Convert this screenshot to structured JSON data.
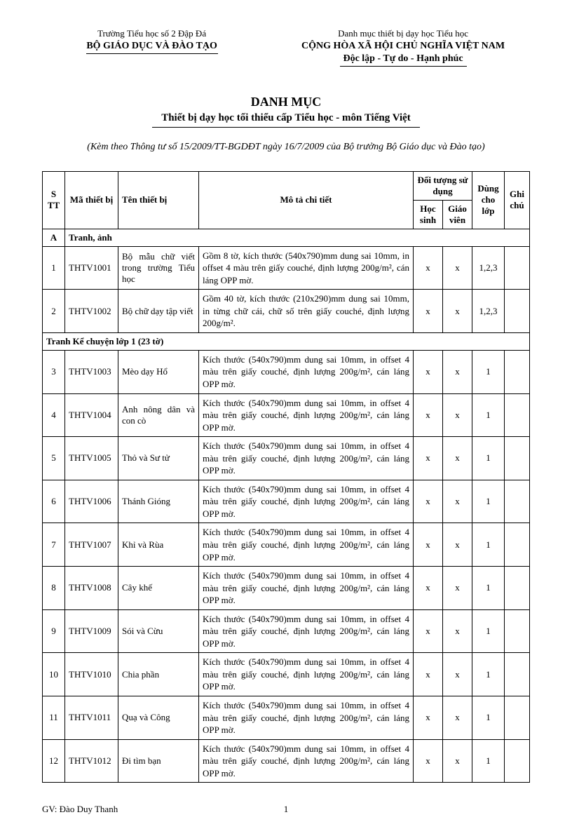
{
  "header": {
    "school": "Trường Tiểu học số 2 Đập Đá",
    "ministry": "BỘ GIÁO DỤC VÀ ĐÀO TẠO",
    "catTitle": "Danh mục thiết bị dạy học Tiểu học",
    "country": "CỘNG HÒA XÃ HỘI CHỦ NGHĨA VIỆT NAM",
    "motto": "Độc lập - Tự do - Hạnh phúc"
  },
  "title": {
    "main": "DANH MỤC",
    "sub": "Thiết bị dạy học tối thiểu cấp Tiểu học - môn Tiếng Việt"
  },
  "reference": "(Kèm theo Thông tư số  15/2009/TT-BGDĐT ngày 16/7/2009 của Bộ trưởng Bộ Giáo dục và Đào tạo)",
  "columns": {
    "stt": "S TT",
    "ma": "Mã thiết bị",
    "ten": "Tên thiết bị",
    "mota": "Mô tả chi tiết",
    "doituong": "Đối tượng sử dụng",
    "hocsinh": "Học sinh",
    "giaovien": "Giáo viên",
    "lop": "Dùng cho lớp",
    "ghi": "Ghi chú"
  },
  "sectionA": {
    "letter": "A",
    "title": "Tranh, ảnh"
  },
  "rowsA": [
    {
      "stt": "1",
      "ma": "THTV1001",
      "ten": "Bộ mẫu chữ viết trong trường Tiểu học",
      "mota": "Gồm 8 tờ, kích thước (540x790)mm dung sai 10mm, in offset 4 màu trên giấy couché, định lượng 200g/m², cán láng OPP mờ.",
      "hs": "x",
      "gv": "x",
      "lop": "1,2,3"
    },
    {
      "stt": "2",
      "ma": "THTV1002",
      "ten": "Bộ chữ dạy tập viết",
      "mota": "Gồm 40 tờ, kích thước (210x290)mm dung sai 10mm, in từng chữ cái, chữ số trên giấy couché, định lượng 200g/m².",
      "hs": "x",
      "gv": "x",
      "lop": "1,2,3"
    }
  ],
  "subsection": "Tranh Kể chuyện lớp 1 (23 tờ)",
  "rowsB": [
    {
      "stt": "3",
      "ma": "THTV1003",
      "ten": "Mèo dạy Hổ",
      "mota": "Kích thước (540x790)mm dung sai 10mm, in offset 4 màu trên giấy couché, định lượng 200g/m², cán láng OPP mờ.",
      "hs": "x",
      "gv": "x",
      "lop": "1"
    },
    {
      "stt": "4",
      "ma": "THTV1004",
      "ten": "Anh nông dân và con cò",
      "mota": "Kích thước (540x790)mm dung sai 10mm, in offset 4 màu trên giấy couché, định lượng 200g/m², cán láng OPP mờ.",
      "hs": "x",
      "gv": "x",
      "lop": "1"
    },
    {
      "stt": "5",
      "ma": "THTV1005",
      "ten": "Thỏ và Sư tử",
      "mota": "Kích thước (540x790)mm dung sai 10mm, in offset 4 màu trên giấy couché, định lượng 200g/m², cán láng OPP mờ.",
      "hs": "x",
      "gv": "x",
      "lop": "1"
    },
    {
      "stt": "6",
      "ma": "THTV1006",
      "ten": "Thánh Gióng",
      "mota": "Kích thước (540x790)mm dung sai 10mm, in offset 4 màu trên giấy couché, định lượng 200g/m², cán láng OPP mờ.",
      "hs": "x",
      "gv": "x",
      "lop": "1"
    },
    {
      "stt": "7",
      "ma": "THTV1007",
      "ten": "Khỉ và Rùa",
      "mota": "Kích thước (540x790)mm dung sai 10mm, in offset 4 màu trên giấy couché, định lượng 200g/m², cán láng OPP mờ.",
      "hs": "x",
      "gv": "x",
      "lop": "1"
    },
    {
      "stt": "8",
      "ma": "THTV1008",
      "ten": "Cây khế",
      "mota": "Kích thước (540x790)mm dung sai 10mm, in offset 4 màu trên giấy couché, định lượng 200g/m², cán láng OPP mờ.",
      "hs": "x",
      "gv": "x",
      "lop": "1"
    },
    {
      "stt": "9",
      "ma": "THTV1009",
      "ten": "Sói và Cừu",
      "mota": "Kích thước (540x790)mm dung sai 10mm, in offset 4 màu trên giấy couché, định lượng 200g/m², cán láng OPP mờ.",
      "hs": "x",
      "gv": "x",
      "lop": "1"
    },
    {
      "stt": "10",
      "ma": "THTV1010",
      "ten": "Chia phần",
      "mota": "Kích thước (540x790)mm dung sai 10mm, in offset 4 màu trên giấy couché, định lượng 200g/m², cán láng OPP mờ.",
      "hs": "x",
      "gv": "x",
      "lop": "1"
    },
    {
      "stt": "11",
      "ma": "THTV1011",
      "ten": "Quạ và Công",
      "mota": "Kích thước (540x790)mm dung sai 10mm, in offset 4 màu trên giấy couché, định lượng 200g/m², cán láng OPP mờ.",
      "hs": "x",
      "gv": "x",
      "lop": "1"
    },
    {
      "stt": "12",
      "ma": "THTV1012",
      "ten": "Đi tìm bạn",
      "mota": "Kích thước (540x790)mm dung sai 10mm, in offset 4 màu trên giấy couché, định lượng 200g/m², cán láng OPP mờ.",
      "hs": "x",
      "gv": "x",
      "lop": "1"
    }
  ],
  "footer": {
    "author": "GV: Đào Duy Thanh",
    "page": "1"
  }
}
